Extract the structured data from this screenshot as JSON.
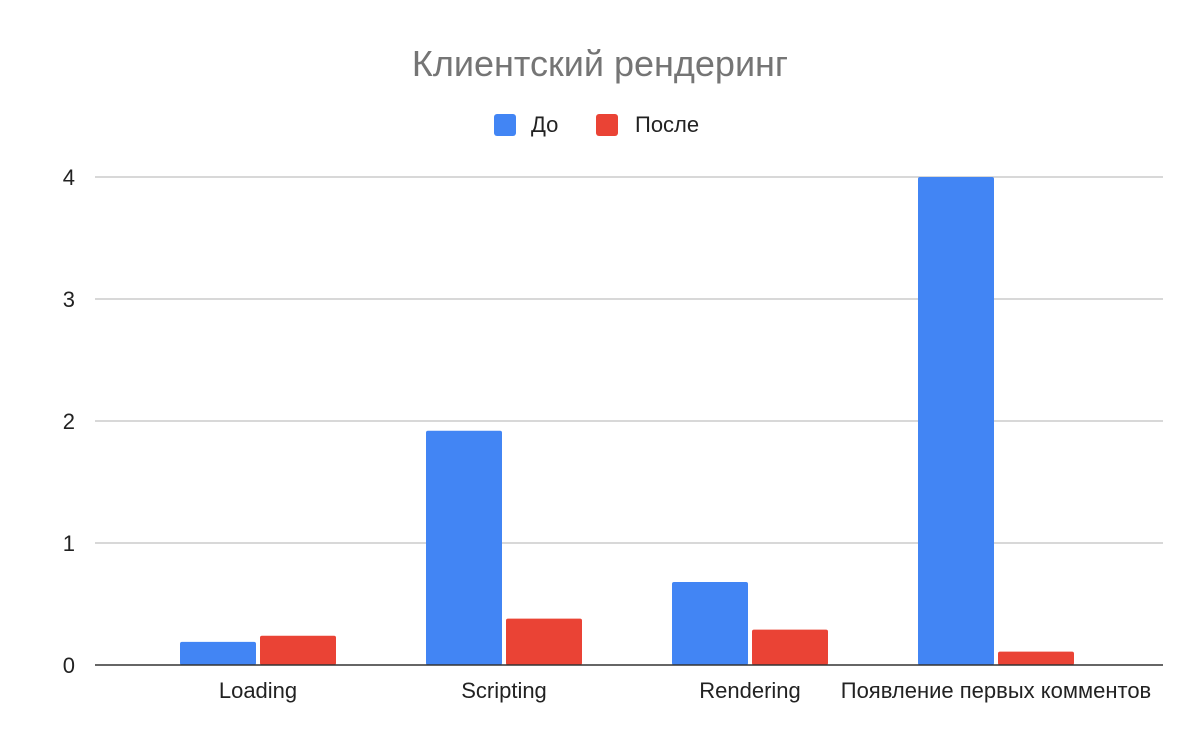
{
  "chart_data": {
    "type": "bar",
    "title": "Клиентский рендеринг",
    "categories": [
      "Loading",
      "Scripting",
      "Rendering",
      "Появление первых комментов"
    ],
    "series": [
      {
        "name": "До",
        "color": "#4285F4",
        "values": [
          0.19,
          1.92,
          0.68,
          4.0
        ]
      },
      {
        "name": "После",
        "color": "#EA4335",
        "values": [
          0.24,
          0.38,
          0.29,
          0.11
        ]
      }
    ],
    "ylim": [
      0,
      4
    ],
    "yticks": [
      0,
      1,
      2,
      3,
      4
    ],
    "xlabel": "",
    "ylabel": "",
    "legend_position": "top",
    "grid": true
  },
  "colors": {
    "title": "#757575",
    "text": "#222222",
    "grid": "#cccccc",
    "axis": "#333333"
  }
}
